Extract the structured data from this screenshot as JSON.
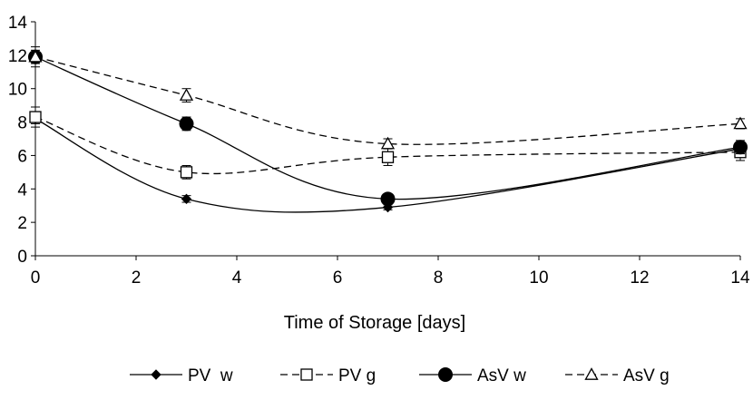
{
  "chart_data": {
    "type": "line",
    "title": "",
    "xlabel": "Time of Storage [days]",
    "ylabel": "",
    "xlim": [
      0,
      14
    ],
    "ylim": [
      0,
      14
    ],
    "x_ticks": [
      0,
      2,
      4,
      6,
      8,
      10,
      12,
      14
    ],
    "y_ticks": [
      0,
      2,
      4,
      6,
      8,
      10,
      12,
      14
    ],
    "grid": false,
    "legend_position": "bottom",
    "series": [
      {
        "name": "PV  w",
        "style": "solid",
        "marker": "diamond-filled",
        "x": [
          0,
          3,
          7,
          14
        ],
        "y": [
          8.2,
          3.4,
          2.9,
          6.4
        ],
        "err": [
          0.3,
          0.2,
          0.15,
          0.3
        ]
      },
      {
        "name": "PV g",
        "style": "dashed",
        "marker": "square-open",
        "x": [
          0,
          3,
          7,
          14
        ],
        "y": [
          8.3,
          5.0,
          5.9,
          6.2
        ],
        "err": [
          0.6,
          0.4,
          0.5,
          0.5
        ]
      },
      {
        "name": "AsV w",
        "style": "solid",
        "marker": "circle-filled",
        "x": [
          0,
          3,
          7,
          14
        ],
        "y": [
          11.9,
          7.9,
          3.4,
          6.5
        ],
        "err": [
          0.4,
          0.4,
          0.2,
          0.4
        ]
      },
      {
        "name": "AsV g",
        "style": "dashed",
        "marker": "triangle-open",
        "x": [
          0,
          3,
          7,
          14
        ],
        "y": [
          11.9,
          9.6,
          6.7,
          7.9
        ],
        "err": [
          0.6,
          0.4,
          0.3,
          0.3
        ]
      }
    ]
  }
}
